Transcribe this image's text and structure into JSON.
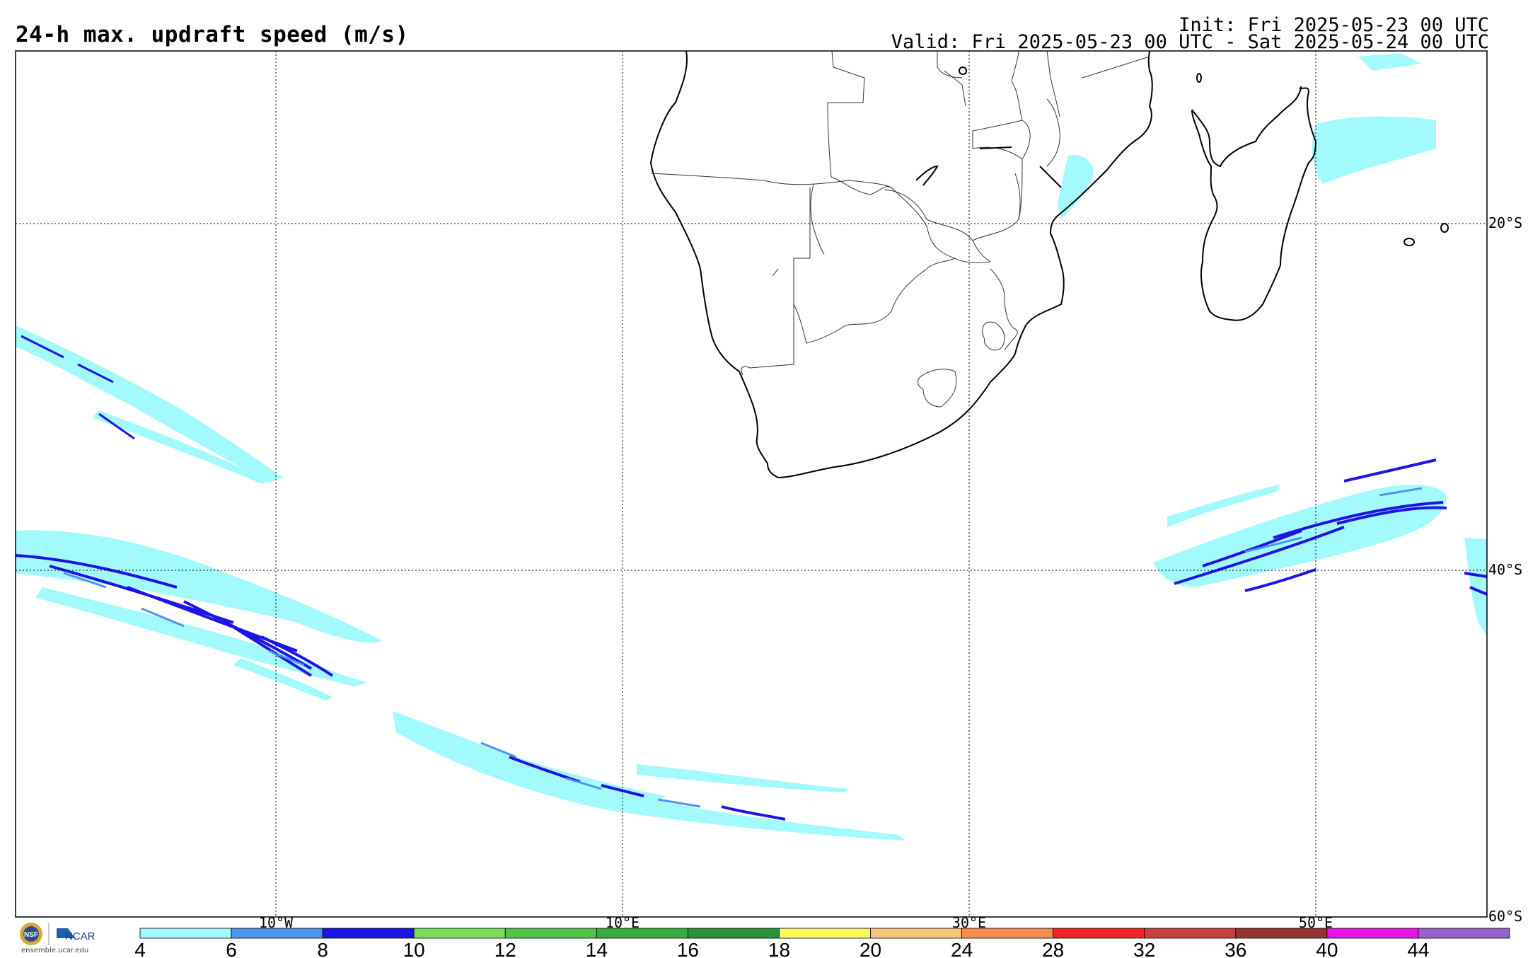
{
  "header": {
    "title": "24-h max. updraft speed (m/s)",
    "init": "Init: Fri 2025-05-23 00 UTC",
    "valid": "Valid: Fri 2025-05-23 00 UTC - Sat 2025-05-24 00 UTC"
  },
  "map": {
    "region": "Southern Africa / South Atlantic / SW Indian Ocean",
    "lon_gridlines": [
      "10°W",
      "10°E",
      "30°E",
      "50°E"
    ],
    "lat_gridlines": [
      "20°S",
      "40°S",
      "60°S"
    ]
  },
  "colorbar": {
    "tick_labels": [
      "4",
      "6",
      "8",
      "10",
      "12",
      "14",
      "16",
      "18",
      "20",
      "24",
      "28",
      "32",
      "36",
      "40",
      "44"
    ],
    "colors": [
      "#a3fafc",
      "#4f94ee",
      "#1e14e6",
      "#7ddc5a",
      "#51c54b",
      "#38ad3e",
      "#2a9139",
      "#fafa5c",
      "#fac778",
      "#f78c50",
      "#f52424",
      "#c84141",
      "#963232",
      "#e614e6",
      "#9664c8"
    ]
  },
  "logo": {
    "nsf": "NSF",
    "ncar": "NCAR",
    "site": "ensemble.ucar.edu"
  }
}
